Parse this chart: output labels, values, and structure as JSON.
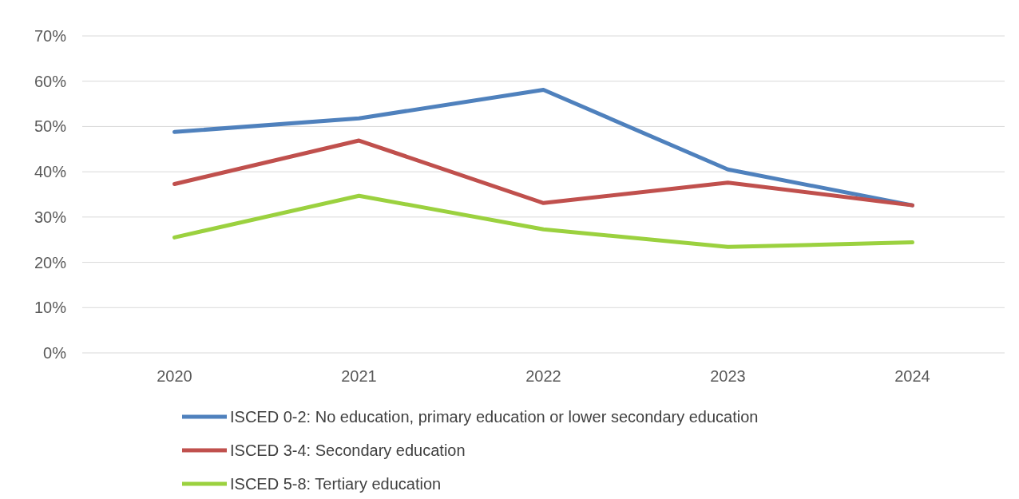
{
  "chart_data": {
    "type": "line",
    "categories": [
      "2020",
      "2021",
      "2022",
      "2023",
      "2024"
    ],
    "series": [
      {
        "name": "ISCED 0-2: No education, primary education or lower secondary education",
        "color": "#4f81bd",
        "values": [
          48.8,
          51.8,
          58.1,
          40.5,
          32.6
        ]
      },
      {
        "name": "ISCED 3-4: Secondary education",
        "color": "#c0504d",
        "values": [
          37.3,
          46.9,
          33.1,
          37.6,
          32.6
        ]
      },
      {
        "name": "ISCED 5-8: Tertiary education",
        "color": "#9bd13f",
        "values": [
          25.5,
          34.7,
          27.3,
          23.4,
          24.4
        ]
      }
    ],
    "ylim": [
      0,
      70
    ],
    "yticks": [
      {
        "value": 0,
        "label": "0%"
      },
      {
        "value": 10,
        "label": "10%"
      },
      {
        "value": 20,
        "label": "20%"
      },
      {
        "value": 30,
        "label": "30%"
      },
      {
        "value": 40,
        "label": "40%"
      },
      {
        "value": 50,
        "label": "50%"
      },
      {
        "value": 60,
        "label": "60%"
      },
      {
        "value": 70,
        "label": "70%"
      }
    ],
    "grid": "y",
    "legend": "bottom",
    "marker": "none",
    "line_style": "solid"
  }
}
